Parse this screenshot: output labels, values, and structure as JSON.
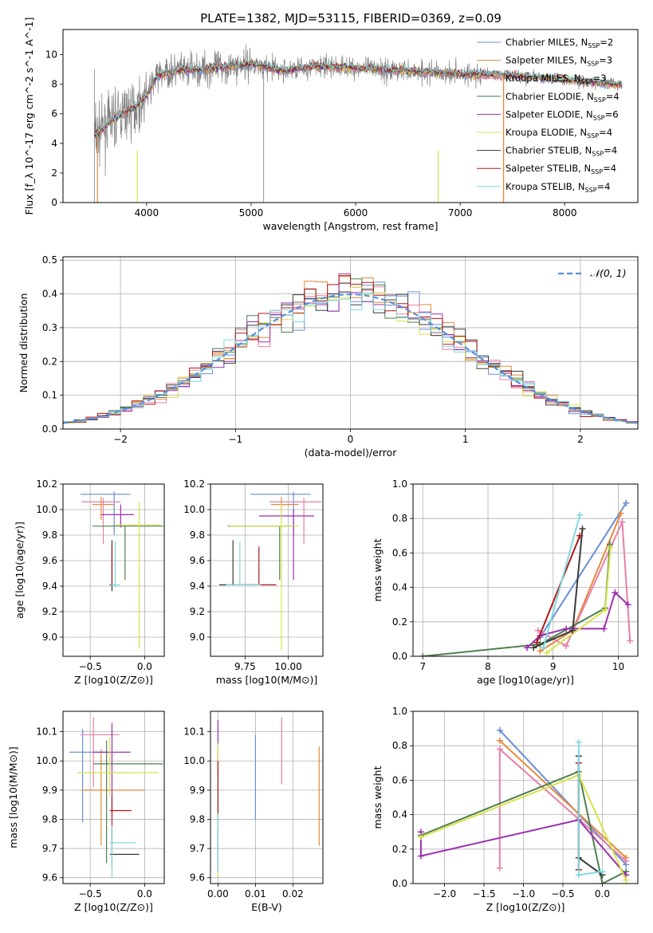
{
  "figure": {
    "title": "PLATE=1382, MJD=53115, FIBERID=0369, z=0.09"
  },
  "chart_data": [
    {
      "type": "line",
      "panel": "spectrum",
      "xlabel": "wavelength [Angstrom, rest frame]",
      "ylabel": "Flux [f_λ 10^-17 erg cm^-2 s^-1 A^-1]",
      "xlim": [
        3200,
        8700
      ],
      "ylim": [
        0,
        11.7
      ],
      "xticks": [
        4000,
        5000,
        6000,
        7000,
        8000
      ],
      "yticks": [
        0,
        2,
        4,
        6,
        8,
        10
      ],
      "legend": "top-right",
      "grid": false,
      "series": [
        {
          "name": "Chabrier MILES, N_SSP=2",
          "color": "#6a8fd8"
        },
        {
          "name": "Salpeter MILES, N_SSP=3",
          "color": "#e58a3a"
        },
        {
          "name": "Kroupa MILES, N_SSP=3",
          "color": "#e87fa8"
        },
        {
          "name": "Chabrier ELODIE, N_SSP=4",
          "color": "#4f7f4f"
        },
        {
          "name": "Salpeter ELODIE, N_SSP=6",
          "color": "#9b30b0"
        },
        {
          "name": "Kroupa ELODIE, N_SSP=4",
          "color": "#d8e24a"
        },
        {
          "name": "Chabrier STELIB, N_SSP=4",
          "color": "#3a3a3a"
        },
        {
          "name": "Salpeter STELIB, N_SSP=4",
          "color": "#b01818"
        },
        {
          "name": "Kroupa STELIB, N_SSP=4",
          "color": "#7fd8e0"
        }
      ],
      "model_shape": {
        "x": [
          3500,
          3700,
          3900,
          4000,
          4100,
          4300,
          4500,
          4800,
          5000,
          5300,
          5600,
          6000,
          6500,
          7000,
          7500,
          8000,
          8500
        ],
        "y": [
          4.5,
          5.7,
          6.5,
          7.2,
          8.6,
          8.9,
          9.0,
          9.2,
          9.4,
          8.9,
          9.2,
          9.1,
          8.9,
          8.7,
          8.6,
          8.3,
          8.0
        ]
      }
    },
    {
      "type": "line",
      "panel": "residual histogram",
      "xlabel": "(data-model)/error",
      "ylabel": "Normed distribution",
      "xlim": [
        -2.5,
        2.5
      ],
      "ylim": [
        0,
        0.51
      ],
      "xticks": [
        -2,
        -1,
        0,
        1,
        2
      ],
      "yticks": [
        0.0,
        0.1,
        0.2,
        0.3,
        0.4,
        0.5
      ],
      "grid": true,
      "legend": "top-right",
      "reference_curve": {
        "name": "𝒩(0, 1)",
        "color": "#5b8fd9"
      }
    },
    {
      "type": "scatter",
      "panel": "age vs Z",
      "xlabel": "Z [log10(Z/Z⊙)]",
      "ylabel": "age [log10(age/yr)]",
      "xlim": [
        -0.75,
        0.18
      ],
      "ylim": [
        8.85,
        10.2
      ],
      "xticks": [
        -0.5,
        0.0
      ],
      "yticks": [
        9.0,
        9.2,
        9.4,
        9.6,
        9.8,
        10.0,
        10.2
      ],
      "grid": true,
      "points": [
        {
          "x": -0.28,
          "y": 10.12,
          "xerr": [
            0.31,
            0.15
          ],
          "yerr": [
            0.32,
            0.02
          ],
          "color": "#6a8fd8"
        },
        {
          "x": -0.4,
          "y": 10.04,
          "xerr": [
            0.08,
            0.12
          ],
          "yerr": [
            0.12,
            0.06
          ],
          "color": "#e58a3a"
        },
        {
          "x": -0.38,
          "y": 10.06,
          "xerr": [
            0.2,
            0.16
          ],
          "yerr": [
            0.33,
            0.03
          ],
          "color": "#e87fa8"
        },
        {
          "x": -0.18,
          "y": 9.87,
          "xerr": [
            0.3,
            0.35
          ],
          "yerr": [
            0.42,
            0.0
          ],
          "color": "#4f7f4f"
        },
        {
          "x": -0.22,
          "y": 9.96,
          "xerr": [
            0.18,
            0.12
          ],
          "yerr": [
            0.1,
            0.08
          ],
          "color": "#9b30b0"
        },
        {
          "x": -0.05,
          "y": 9.88,
          "xerr": [
            0.22,
            0.2
          ],
          "yerr": [
            0.97,
            0.18
          ],
          "color": "#d8e24a"
        },
        {
          "x": -0.3,
          "y": 9.41,
          "xerr": [
            0.02,
            0.02
          ],
          "yerr": [
            0.05,
            0.35
          ],
          "color": "#3a3a3a"
        },
        {
          "x": -0.3,
          "y": 9.41,
          "xerr": [
            0.02,
            0.02
          ],
          "yerr": [
            0.0,
            0.3
          ],
          "color": "#b01818"
        },
        {
          "x": -0.27,
          "y": 9.41,
          "xerr": [
            0.04,
            0.04
          ],
          "yerr": [
            0.02,
            0.34
          ],
          "color": "#7fd8e0"
        }
      ]
    },
    {
      "type": "scatter",
      "panel": "age vs mass",
      "xlabel": "mass [log10(M/M⊙)]",
      "xlim": [
        9.55,
        10.2
      ],
      "ylim": [
        8.85,
        10.2
      ],
      "xticks": [
        9.75,
        10.0
      ],
      "yticks": [
        9.0,
        9.2,
        9.4,
        9.6,
        9.8,
        10.0,
        10.2
      ],
      "grid": true,
      "points": [
        {
          "x": 10.03,
          "y": 10.12,
          "xerr": [
            0.25,
            0.1
          ],
          "yerr": [
            0.32,
            0.02
          ],
          "color": "#6a8fd8"
        },
        {
          "x": 9.96,
          "y": 10.04,
          "xerr": [
            0.06,
            0.1
          ],
          "yerr": [
            0.12,
            0.06
          ],
          "color": "#e58a3a"
        },
        {
          "x": 10.09,
          "y": 10.06,
          "xerr": [
            0.2,
            0.1
          ],
          "yerr": [
            0.33,
            0.03
          ],
          "color": "#e87fa8"
        },
        {
          "x": 9.95,
          "y": 9.87,
          "xerr": [
            0.3,
            0.08
          ],
          "yerr": [
            0.42,
            0.0
          ],
          "color": "#4f7f4f"
        },
        {
          "x": 10.03,
          "y": 9.95,
          "xerr": [
            0.2,
            0.12
          ],
          "yerr": [
            0.5,
            0.05
          ],
          "color": "#9b30b0"
        },
        {
          "x": 9.96,
          "y": 9.87,
          "xerr": [
            0.3,
            0.1
          ],
          "yerr": [
            0.97,
            0.18
          ],
          "color": "#d8e24a"
        },
        {
          "x": 9.68,
          "y": 9.41,
          "xerr": [
            0.08,
            0.12
          ],
          "yerr": [
            0.0,
            0.35
          ],
          "color": "#3a3a3a"
        },
        {
          "x": 9.83,
          "y": 9.41,
          "xerr": [
            0.08,
            0.1
          ],
          "yerr": [
            0.0,
            0.3
          ],
          "color": "#b01818"
        },
        {
          "x": 9.72,
          "y": 9.41,
          "xerr": [
            0.08,
            0.12
          ],
          "yerr": [
            0.0,
            0.34
          ],
          "color": "#7fd8e0"
        }
      ]
    },
    {
      "type": "line",
      "panel": "mass weight vs age",
      "xlabel": "age [log10(age/yr)]",
      "ylabel": "mass weight",
      "xlim": [
        6.85,
        10.3
      ],
      "ylim": [
        0,
        1.0
      ],
      "xticks": [
        7,
        8,
        9,
        10
      ],
      "yticks": [
        0.0,
        0.2,
        0.4,
        0.6,
        0.8,
        1.0
      ],
      "grid": true,
      "series": [
        {
          "color": "#6a8fd8",
          "x": [
            8.8,
            10.12
          ],
          "y": [
            0.11,
            0.89
          ]
        },
        {
          "color": "#e58a3a",
          "x": [
            8.8,
            9.3,
            10.04
          ],
          "y": [
            0.03,
            0.15,
            0.83
          ]
        },
        {
          "color": "#e87fa8",
          "x": [
            8.77,
            9.2,
            10.06,
            10.18
          ],
          "y": [
            0.15,
            0.06,
            0.78,
            0.09
          ]
        },
        {
          "color": "#4f7f4f",
          "x": [
            7.0,
            8.8,
            9.8,
            9.87
          ],
          "y": [
            0.0,
            0.07,
            0.28,
            0.65
          ]
        },
        {
          "color": "#9b30b0",
          "x": [
            8.6,
            8.8,
            9.2,
            9.78,
            9.95,
            10.15
          ],
          "y": [
            0.05,
            0.12,
            0.16,
            0.16,
            0.37,
            0.3
          ]
        },
        {
          "color": "#d8e24a",
          "x": [
            8.9,
            9.8,
            9.88
          ],
          "y": [
            0.02,
            0.27,
            0.63
          ]
        },
        {
          "color": "#3a3a3a",
          "x": [
            8.7,
            9.3,
            9.45
          ],
          "y": [
            0.05,
            0.15,
            0.74
          ]
        },
        {
          "color": "#b01818",
          "x": [
            8.75,
            9.41
          ],
          "y": [
            0.08,
            0.7
          ]
        },
        {
          "color": "#7fd8e0",
          "x": [
            8.85,
            9.41
          ],
          "y": [
            0.05,
            0.82
          ]
        }
      ]
    },
    {
      "type": "scatter",
      "panel": "mass vs Z",
      "xlabel": "Z [log10(Z/Z⊙)]",
      "ylabel": "mass [log10(M/M⊙)]",
      "xlim": [
        -0.75,
        0.18
      ],
      "ylim": [
        9.58,
        10.17
      ],
      "xticks": [
        -0.5,
        0.0
      ],
      "yticks": [
        9.6,
        9.7,
        9.8,
        9.9,
        10.0,
        10.1
      ],
      "grid": true,
      "points": [
        {
          "x": -0.57,
          "y": 10.03,
          "xerr": [
            0.12,
            0.22
          ],
          "yerr": [
            0.24,
            0.08
          ],
          "color": "#6a8fd8"
        },
        {
          "x": -0.4,
          "y": 9.9,
          "xerr": [
            0.18,
            0.4
          ],
          "yerr": [
            0.19,
            0.14
          ],
          "color": "#e58a3a"
        },
        {
          "x": -0.47,
          "y": 10.09,
          "xerr": [
            0.12,
            0.24
          ],
          "yerr": [
            0.18,
            0.06
          ],
          "color": "#e87fa8"
        },
        {
          "x": -0.35,
          "y": 9.99,
          "xerr": [
            0.12,
            0.52
          ],
          "yerr": [
            0.34,
            0.08
          ],
          "color": "#4f7f4f"
        },
        {
          "x": -0.3,
          "y": 10.03,
          "xerr": [
            0.17,
            0.17
          ],
          "yerr": [
            0.21,
            0.1
          ],
          "color": "#9b30b0"
        },
        {
          "x": -0.32,
          "y": 9.96,
          "xerr": [
            0.3,
            0.45
          ],
          "yerr": [
            0.08,
            0.12
          ],
          "color": "#d8e24a"
        },
        {
          "x": -0.3,
          "y": 9.68,
          "xerr": [
            0.02,
            0.25
          ],
          "yerr": [
            0.05,
            0.1
          ],
          "color": "#3a3a3a"
        },
        {
          "x": -0.3,
          "y": 9.83,
          "xerr": [
            0.02,
            0.18
          ],
          "yerr": [
            0.1,
            0.05
          ],
          "color": "#b01818"
        },
        {
          "x": -0.3,
          "y": 9.72,
          "xerr": [
            0.02,
            0.22
          ],
          "yerr": [
            0.12,
            0.06
          ],
          "color": "#7fd8e0"
        }
      ]
    },
    {
      "type": "scatter",
      "panel": "mass vs E(B-V)",
      "xlabel": "E(B-V)",
      "xlim": [
        -0.002,
        0.028
      ],
      "ylim": [
        9.58,
        10.17
      ],
      "xticks": [
        0.0,
        0.01,
        0.02
      ],
      "yticks": [
        9.6,
        9.7,
        9.8,
        9.9,
        10.0,
        10.1
      ],
      "grid": true,
      "points": [
        {
          "x": 0.01,
          "y": 9.98,
          "yerr": [
            0.18,
            0.11
          ],
          "color": "#6a8fd8"
        },
        {
          "x": 0.027,
          "y": 9.93,
          "yerr": [
            0.22,
            0.12
          ],
          "color": "#e58a3a"
        },
        {
          "x": 0.017,
          "y": 10.05,
          "yerr": [
            0.13,
            0.1
          ],
          "color": "#e87fa8"
        },
        {
          "x": 0.0,
          "y": 9.8,
          "yerr": [
            0.17,
            0.23
          ],
          "color": "#4f7f4f"
        },
        {
          "x": 0.0,
          "y": 10.05,
          "yerr": [
            0.08,
            0.09
          ],
          "color": "#9b30b0"
        },
        {
          "x": 0.0,
          "y": 9.82,
          "yerr": [
            0.22,
            0.24
          ],
          "color": "#d8e24a"
        },
        {
          "x": 0.0,
          "y": 9.67,
          "yerr": [
            0.05,
            0.1
          ],
          "color": "#3a3a3a"
        },
        {
          "x": 0.0,
          "y": 9.9,
          "yerr": [
            0.1,
            0.1
          ],
          "color": "#b01818"
        },
        {
          "x": 0.0,
          "y": 9.7,
          "yerr": [
            0.08,
            0.12
          ],
          "color": "#7fd8e0"
        }
      ]
    },
    {
      "type": "line",
      "panel": "mass weight vs Z",
      "xlabel": "Z [log10(Z/Z⊙)]",
      "ylabel": "mass weight",
      "xlim": [
        -2.4,
        0.45
      ],
      "ylim": [
        0,
        1.0
      ],
      "xticks": [
        -2.0,
        -1.5,
        -1.0,
        -0.5,
        0.0
      ],
      "yticks": [
        0.0,
        0.2,
        0.4,
        0.6,
        0.8,
        1.0
      ],
      "grid": true,
      "series": [
        {
          "color": "#6a8fd8",
          "x": [
            -1.3,
            0.3
          ],
          "y": [
            0.89,
            0.11
          ]
        },
        {
          "color": "#e58a3a",
          "x": [
            -1.3,
            0.3
          ],
          "y": [
            0.83,
            0.15
          ]
        },
        {
          "color": "#e87fa8",
          "x": [
            -1.3,
            -1.3,
            0.3
          ],
          "y": [
            0.09,
            0.78,
            0.13
          ]
        },
        {
          "color": "#4f7f4f",
          "x": [
            -2.3,
            -0.3,
            0.0,
            0.3
          ],
          "y": [
            0.28,
            0.65,
            0.0,
            0.07
          ]
        },
        {
          "color": "#9b30b0",
          "x": [
            -2.3,
            -2.3,
            -0.3,
            0.3
          ],
          "y": [
            0.3,
            0.16,
            0.37,
            0.05
          ]
        },
        {
          "color": "#d8e24a",
          "x": [
            -2.3,
            -0.3,
            0.3
          ],
          "y": [
            0.27,
            0.63,
            0.02
          ]
        },
        {
          "color": "#3a3a3a",
          "x": [
            -0.3,
            -0.3,
            0.0
          ],
          "y": [
            0.74,
            0.15,
            0.05
          ]
        },
        {
          "color": "#b01818",
          "x": [
            -0.3,
            -0.3
          ],
          "y": [
            0.7,
            0.08
          ]
        },
        {
          "color": "#7fd8e0",
          "x": [
            -0.3,
            -0.3,
            0.0
          ],
          "y": [
            0.82,
            0.05,
            0.07
          ]
        }
      ]
    }
  ]
}
